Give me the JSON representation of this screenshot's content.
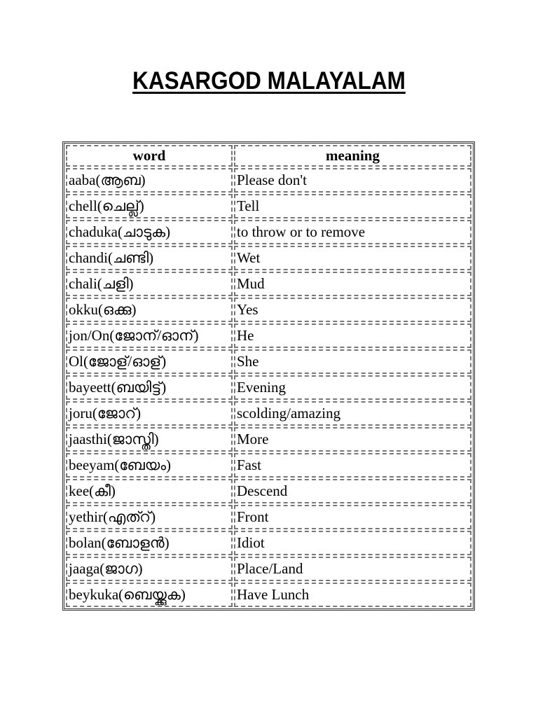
{
  "title": "KASARGOD MALAYALAM",
  "table": {
    "headers": [
      "word",
      "meaning"
    ],
    "rows": [
      {
        "word": "aaba(ആബ)",
        "meaning": "Please don't"
      },
      {
        "word": "chell(ചെല്ല്)",
        "meaning": "Tell"
      },
      {
        "word": "chaduka(ചാടുക)",
        "meaning": "to throw or to remove"
      },
      {
        "word": "chandi(ചണ്ടി)",
        "meaning": "Wet"
      },
      {
        "word": "chali(ചളി)",
        "meaning": "Mud"
      },
      {
        "word": "okku(ഒക്കു)",
        "meaning": "Yes"
      },
      {
        "word": "jon/On(ജോന്/ഓന്)",
        "meaning": "He"
      },
      {
        "word": "Ol(ജോള്/ഓള്)",
        "meaning": "She"
      },
      {
        "word": "bayeett(ബയിട്ട്)",
        "meaning": "Evening"
      },
      {
        "word": "joru(ജോറ്)",
        "meaning": "scolding/amazing"
      },
      {
        "word": "jaasthi(ജാസ്തി)",
        "meaning": "More"
      },
      {
        "word": "beeyam(ബേയം)",
        "meaning": "Fast"
      },
      {
        "word": "kee(കീ)",
        "meaning": "Descend"
      },
      {
        "word": "yethir(എത്റ്)",
        "meaning": "Front"
      },
      {
        "word": "bolan(ബോളൻ)",
        "meaning": "Idiot"
      },
      {
        "word": "jaaga(ജാഗ)",
        "meaning": "Place/Land"
      },
      {
        "word": "beykuka(ബെയ്ക്കുക)",
        "meaning": "Have Lunch"
      }
    ]
  }
}
